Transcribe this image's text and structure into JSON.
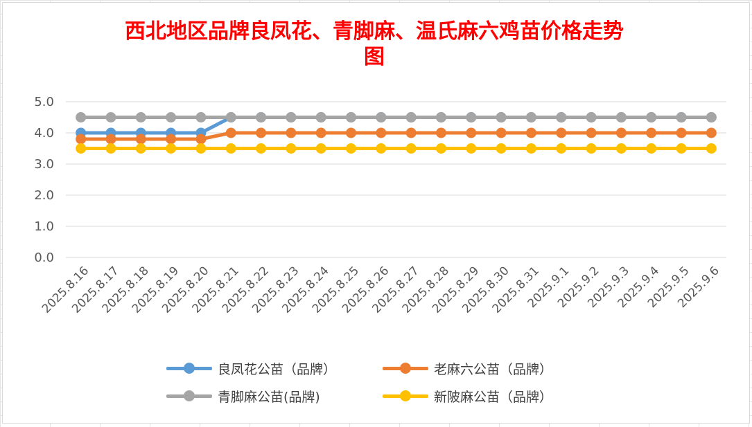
{
  "chart_data": {
    "type": "line",
    "title": "西北地区品牌良凤花、青脚麻、温氏麻六鸡苗价格走势图",
    "title_lines": [
      "西北地区品牌良凤花、青脚麻、温氏麻六鸡苗价格走势",
      "图"
    ],
    "title_color": "#ff0000",
    "xlabel": "",
    "ylabel": "",
    "ylim": [
      0,
      5
    ],
    "yticks": [
      "0.0",
      "1.0",
      "2.0",
      "3.0",
      "4.0",
      "5.0"
    ],
    "grid": true,
    "legend_position": "bottom",
    "x": [
      "2025.8.16",
      "2025.8.17",
      "2025.8.18",
      "2025.8.19",
      "2025.8.20",
      "2025.8.21",
      "2025.8.22",
      "2025.8.23",
      "2025.8.24",
      "2025.8.25",
      "2025.8.26",
      "2025.8.27",
      "2025.8.28",
      "2025.8.29",
      "2025.8.30",
      "2025.8.31",
      "2025.9.1",
      "2025.9.2",
      "2025.9.3",
      "2025.9.4",
      "2025.9.5",
      "2025.9.6"
    ],
    "series": [
      {
        "name": "良凤花公苗（品牌）",
        "color": "#5b9bd5",
        "values": [
          4.0,
          4.0,
          4.0,
          4.0,
          4.0,
          4.5,
          4.5,
          4.5,
          4.5,
          4.5,
          4.5,
          4.5,
          4.5,
          4.5,
          4.5,
          4.5,
          4.5,
          4.5,
          4.5,
          4.5,
          4.5,
          4.5
        ]
      },
      {
        "name": "老麻六公苗（品牌）",
        "color": "#ed7d31",
        "values": [
          3.8,
          3.8,
          3.8,
          3.8,
          3.8,
          4.0,
          4.0,
          4.0,
          4.0,
          4.0,
          4.0,
          4.0,
          4.0,
          4.0,
          4.0,
          4.0,
          4.0,
          4.0,
          4.0,
          4.0,
          4.0,
          4.0
        ]
      },
      {
        "name": "青脚麻公苗(品牌)",
        "color": "#a5a5a5",
        "values": [
          4.5,
          4.5,
          4.5,
          4.5,
          4.5,
          4.5,
          4.5,
          4.5,
          4.5,
          4.5,
          4.5,
          4.5,
          4.5,
          4.5,
          4.5,
          4.5,
          4.5,
          4.5,
          4.5,
          4.5,
          4.5,
          4.5
        ]
      },
      {
        "name": "新陂麻公苗（品牌）",
        "color": "#ffc000",
        "values": [
          3.5,
          3.5,
          3.5,
          3.5,
          3.5,
          3.5,
          3.5,
          3.5,
          3.5,
          3.5,
          3.5,
          3.5,
          3.5,
          3.5,
          3.5,
          3.5,
          3.5,
          3.5,
          3.5,
          3.5,
          3.5,
          3.5
        ]
      }
    ],
    "draw_order": [
      0,
      1,
      3,
      2
    ],
    "legend_layout": [
      [
        0,
        1
      ],
      [
        2,
        3
      ]
    ]
  }
}
